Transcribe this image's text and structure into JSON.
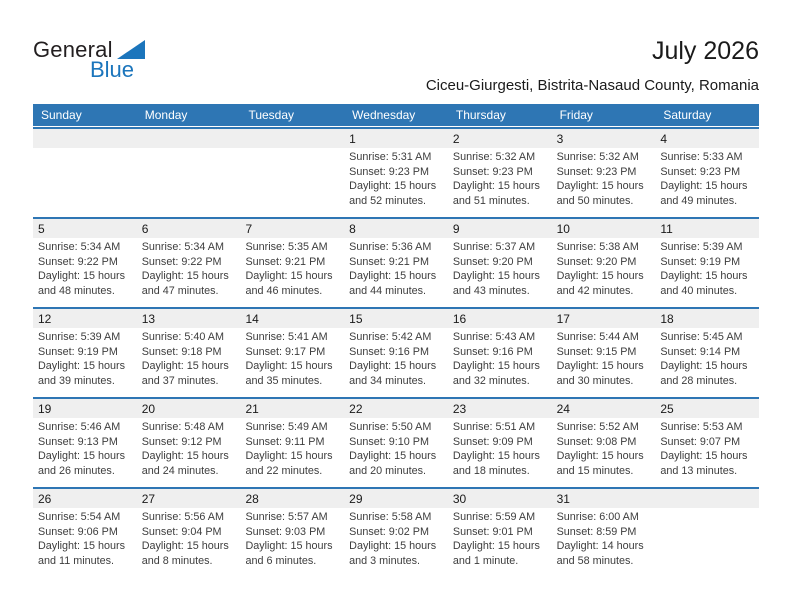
{
  "page": {
    "title": "July 2026",
    "subtitle": "Ciceu-Giurgesti, Bistrita-Nasaud County, Romania"
  },
  "logo": {
    "line1": "General",
    "line2": "Blue",
    "dark_color": "#231F20",
    "blue_color": "#1B75BC"
  },
  "colors": {
    "header_bg": "#2E76B4",
    "header_text": "#FFFFFF",
    "row_separator": "#2E76B4",
    "day_band_bg": "#EFEFEF",
    "day_number_text": "#1A1A1A",
    "detail_text": "#3D3D3D"
  },
  "calendar": {
    "weekday_headers": [
      "Sunday",
      "Monday",
      "Tuesday",
      "Wednesday",
      "Thursday",
      "Friday",
      "Saturday"
    ],
    "label_prefixes": {
      "sunrise": "Sunrise:",
      "sunset": "Sunset:",
      "daylight": "Daylight:"
    },
    "weeks": [
      [
        null,
        null,
        null,
        {
          "day": "1",
          "sunrise": "5:31 AM",
          "sunset": "9:23 PM",
          "daylight": "15 hours and 52 minutes."
        },
        {
          "day": "2",
          "sunrise": "5:32 AM",
          "sunset": "9:23 PM",
          "daylight": "15 hours and 51 minutes."
        },
        {
          "day": "3",
          "sunrise": "5:32 AM",
          "sunset": "9:23 PM",
          "daylight": "15 hours and 50 minutes."
        },
        {
          "day": "4",
          "sunrise": "5:33 AM",
          "sunset": "9:23 PM",
          "daylight": "15 hours and 49 minutes."
        }
      ],
      [
        {
          "day": "5",
          "sunrise": "5:34 AM",
          "sunset": "9:22 PM",
          "daylight": "15 hours and 48 minutes."
        },
        {
          "day": "6",
          "sunrise": "5:34 AM",
          "sunset": "9:22 PM",
          "daylight": "15 hours and 47 minutes."
        },
        {
          "day": "7",
          "sunrise": "5:35 AM",
          "sunset": "9:21 PM",
          "daylight": "15 hours and 46 minutes."
        },
        {
          "day": "8",
          "sunrise": "5:36 AM",
          "sunset": "9:21 PM",
          "daylight": "15 hours and 44 minutes."
        },
        {
          "day": "9",
          "sunrise": "5:37 AM",
          "sunset": "9:20 PM",
          "daylight": "15 hours and 43 minutes."
        },
        {
          "day": "10",
          "sunrise": "5:38 AM",
          "sunset": "9:20 PM",
          "daylight": "15 hours and 42 minutes."
        },
        {
          "day": "11",
          "sunrise": "5:39 AM",
          "sunset": "9:19 PM",
          "daylight": "15 hours and 40 minutes."
        }
      ],
      [
        {
          "day": "12",
          "sunrise": "5:39 AM",
          "sunset": "9:19 PM",
          "daylight": "15 hours and 39 minutes."
        },
        {
          "day": "13",
          "sunrise": "5:40 AM",
          "sunset": "9:18 PM",
          "daylight": "15 hours and 37 minutes."
        },
        {
          "day": "14",
          "sunrise": "5:41 AM",
          "sunset": "9:17 PM",
          "daylight": "15 hours and 35 minutes."
        },
        {
          "day": "15",
          "sunrise": "5:42 AM",
          "sunset": "9:16 PM",
          "daylight": "15 hours and 34 minutes."
        },
        {
          "day": "16",
          "sunrise": "5:43 AM",
          "sunset": "9:16 PM",
          "daylight": "15 hours and 32 minutes."
        },
        {
          "day": "17",
          "sunrise": "5:44 AM",
          "sunset": "9:15 PM",
          "daylight": "15 hours and 30 minutes."
        },
        {
          "day": "18",
          "sunrise": "5:45 AM",
          "sunset": "9:14 PM",
          "daylight": "15 hours and 28 minutes."
        }
      ],
      [
        {
          "day": "19",
          "sunrise": "5:46 AM",
          "sunset": "9:13 PM",
          "daylight": "15 hours and 26 minutes."
        },
        {
          "day": "20",
          "sunrise": "5:48 AM",
          "sunset": "9:12 PM",
          "daylight": "15 hours and 24 minutes."
        },
        {
          "day": "21",
          "sunrise": "5:49 AM",
          "sunset": "9:11 PM",
          "daylight": "15 hours and 22 minutes."
        },
        {
          "day": "22",
          "sunrise": "5:50 AM",
          "sunset": "9:10 PM",
          "daylight": "15 hours and 20 minutes."
        },
        {
          "day": "23",
          "sunrise": "5:51 AM",
          "sunset": "9:09 PM",
          "daylight": "15 hours and 18 minutes."
        },
        {
          "day": "24",
          "sunrise": "5:52 AM",
          "sunset": "9:08 PM",
          "daylight": "15 hours and 15 minutes."
        },
        {
          "day": "25",
          "sunrise": "5:53 AM",
          "sunset": "9:07 PM",
          "daylight": "15 hours and 13 minutes."
        }
      ],
      [
        {
          "day": "26",
          "sunrise": "5:54 AM",
          "sunset": "9:06 PM",
          "daylight": "15 hours and 11 minutes."
        },
        {
          "day": "27",
          "sunrise": "5:56 AM",
          "sunset": "9:04 PM",
          "daylight": "15 hours and 8 minutes."
        },
        {
          "day": "28",
          "sunrise": "5:57 AM",
          "sunset": "9:03 PM",
          "daylight": "15 hours and 6 minutes."
        },
        {
          "day": "29",
          "sunrise": "5:58 AM",
          "sunset": "9:02 PM",
          "daylight": "15 hours and 3 minutes."
        },
        {
          "day": "30",
          "sunrise": "5:59 AM",
          "sunset": "9:01 PM",
          "daylight": "15 hours and 1 minute."
        },
        {
          "day": "31",
          "sunrise": "6:00 AM",
          "sunset": "8:59 PM",
          "daylight": "14 hours and 58 minutes."
        },
        null
      ]
    ]
  }
}
